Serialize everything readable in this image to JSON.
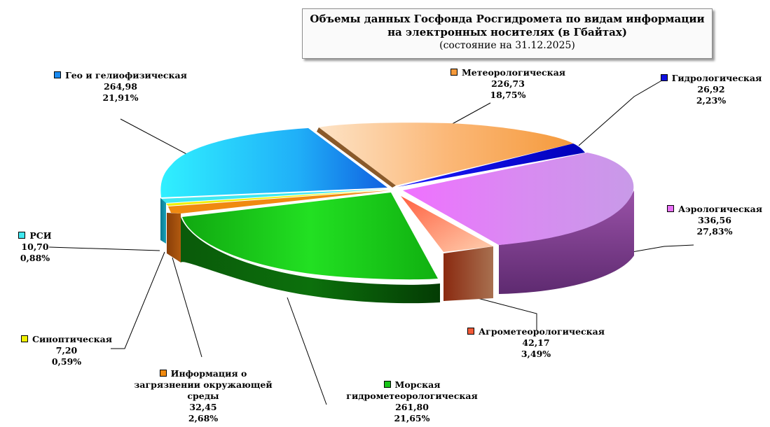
{
  "title": {
    "line1": "Объемы данных Госфонда Росгидромета по видам информации",
    "line2": "на электронных  носителях (в Гбайтах)",
    "line3": "(состояние на 31.12.2025)"
  },
  "chart_data": {
    "type": "pie",
    "title": "Объемы данных Госфонда Росгидромета по видам информации на электронных носителях (в Гбайтах) (состояние на 31.12.2025)",
    "value_unit": "Гбайт",
    "slices": [
      {
        "name": "Метеорологическая",
        "value": "226,73",
        "percent": "18,75%",
        "color": "#f59a3c"
      },
      {
        "name": "Гидрологическая",
        "value": "26,92",
        "percent": "2,23%",
        "color": "#1010e0"
      },
      {
        "name": "Аэрологическая",
        "value": "336,56",
        "percent": "27,83%",
        "color": "#e870f8"
      },
      {
        "name": "Агрометеорологическая",
        "value": "42,17",
        "percent": "3,49%",
        "color": "#f25a38"
      },
      {
        "name": "Морская гидрометеорологическая",
        "value": "261,80",
        "percent": "21,65%",
        "color": "#18c418"
      },
      {
        "name": "Информация о загрязнении окружающей среды",
        "value": "32,45",
        "percent": "2,68%",
        "color": "#f08a10"
      },
      {
        "name": "Синоптическая",
        "value": "7,20",
        "percent": "0,59%",
        "color": "#f0f000"
      },
      {
        "name": "РСИ",
        "value": "10,70",
        "percent": "0,88%",
        "color": "#40e8f0"
      },
      {
        "name": "Гео и гелиофизическая",
        "value": "264,98",
        "percent": "21,91%",
        "color": "#1a8af0"
      }
    ]
  },
  "labels": {
    "meteo": {
      "line1": "Метеорологическая"
    },
    "hydro": {
      "line1": "Гидрологическая"
    },
    "aero": {
      "line1": "Аэрологическая"
    },
    "agro": {
      "line1": "Агрометеорологическая"
    },
    "marine": {
      "line1": "Морская",
      "line2": "гидрометеорологическая"
    },
    "pollution": {
      "line1": "Информация о",
      "line2": "загрязнении окружающей",
      "line3": "среды"
    },
    "synoptic": {
      "line1": "Синоптическая"
    },
    "rsi": {
      "line1": "РСИ"
    },
    "geo": {
      "line1": "Гео и гелиофизическая"
    }
  }
}
